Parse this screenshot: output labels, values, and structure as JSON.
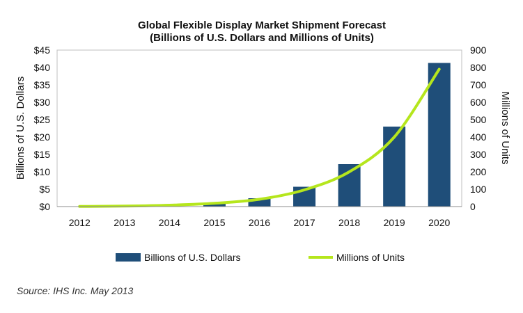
{
  "chart_data": {
    "type": "bar",
    "title": "Global Flexible Display Market Shipment Forecast",
    "subtitle": "(Billions of U.S. Dollars and Millions of Units)",
    "categories": [
      "2012",
      "2013",
      "2014",
      "2015",
      "2016",
      "2017",
      "2018",
      "2019",
      "2020"
    ],
    "series": [
      {
        "name": "Billions of U.S. Dollars",
        "type": "bar",
        "axis": "left",
        "color": "#1f4e79",
        "values": [
          0.0,
          0.05,
          0.3,
          1.0,
          2.4,
          5.7,
          12.2,
          23.0,
          41.3
        ]
      },
      {
        "name": "Millions of Units",
        "type": "line",
        "axis": "right",
        "color": "#b5e61d",
        "values": [
          1,
          3,
          8,
          19,
          42,
          96,
          200,
          400,
          790
        ]
      }
    ],
    "ylabel": "Billions of U.S. Dollars",
    "ylim": [
      0,
      45
    ],
    "yticks": [
      "$0",
      "$5",
      "$10",
      "$15",
      "$20",
      "$25",
      "$30",
      "$35",
      "$40",
      "$45"
    ],
    "y2label": "Millions of Units",
    "y2lim": [
      0,
      900
    ],
    "y2ticks": [
      "0",
      "100",
      "200",
      "300",
      "400",
      "500",
      "600",
      "700",
      "800",
      "900"
    ],
    "xlabel": "",
    "grid": false,
    "legend": "bottom"
  },
  "source": "Source: IHS Inc. May 2013"
}
